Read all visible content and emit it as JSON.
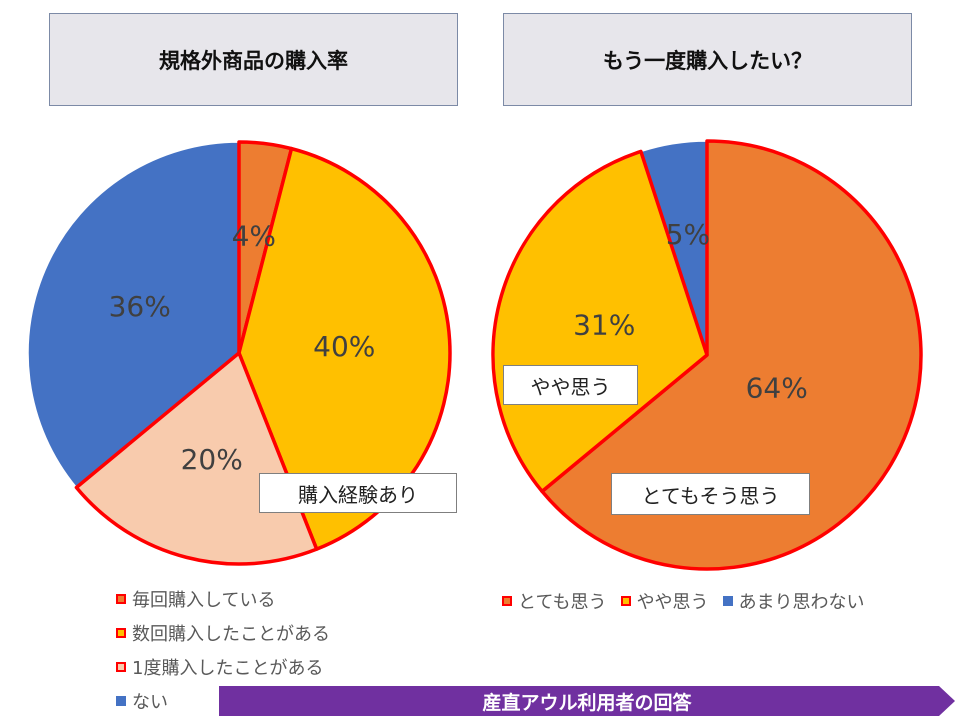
{
  "chart_data": [
    {
      "type": "pie",
      "title": "規格外商品の購入率",
      "categories": [
        "毎回購入している",
        "数回購入したことがある",
        "1度購入したことがある",
        "ない"
      ],
      "values": [
        4,
        40,
        20,
        36
      ],
      "labels": [
        "4%",
        "40%",
        "20%",
        "36%"
      ],
      "colors": [
        "#ed7d31",
        "#ffc000",
        "#f8cbad",
        "#4472c4"
      ],
      "highlight_color": "#ff0000",
      "legend_position": "bottom-left",
      "annotation": "購入経験あり"
    },
    {
      "type": "pie",
      "title": "もう一度購入したい？",
      "categories": [
        "とても思う",
        "やや思う",
        "あまり思わない"
      ],
      "values": [
        64,
        31,
        5
      ],
      "labels": [
        "64%",
        "31%",
        "5%"
      ],
      "colors": [
        "#ed7d31",
        "#ffc000",
        "#4472c4"
      ],
      "highlight_color": "#ff0000",
      "legend_position": "bottom",
      "annotations": [
        "やや思う",
        "とてもそう思う"
      ]
    }
  ],
  "banner": "産直アウル利用者の回答"
}
